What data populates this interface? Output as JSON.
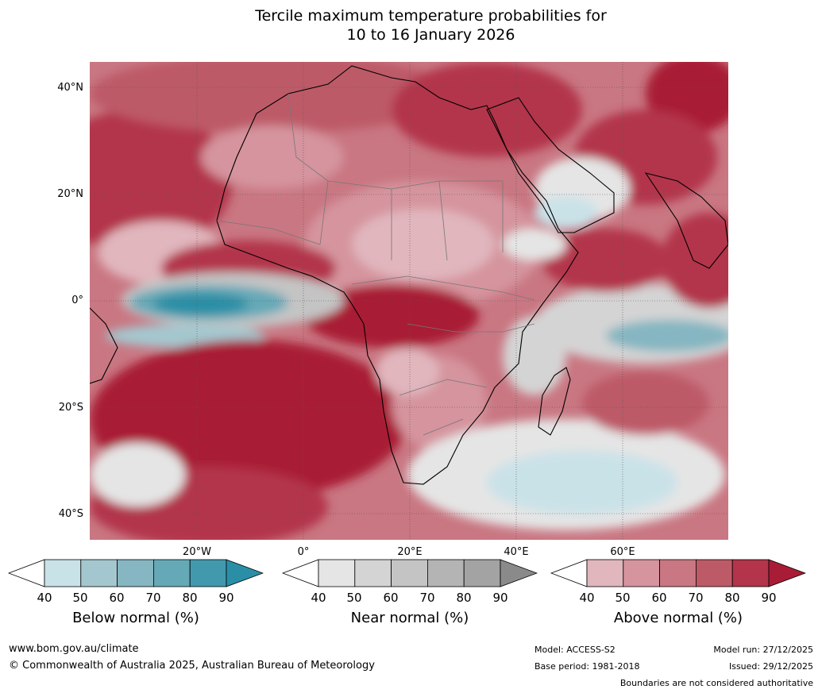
{
  "title_line1": "Tercile maximum temperature probabilities for",
  "title_line2": "10 to 16 January 2026",
  "lat_labels": [
    "40°N",
    "20°N",
    "0°",
    "20°S",
    "40°S"
  ],
  "lon_labels": [
    "20°W",
    "0°",
    "20°E",
    "40°E",
    "60°E"
  ],
  "colorbars": [
    {
      "name": "below",
      "title": "Below normal (%)",
      "ticks": [
        "40",
        "50",
        "60",
        "70",
        "80",
        "90"
      ],
      "colors": [
        "#ffffff",
        "#c9e2e8",
        "#a4c7cf",
        "#85b6c1",
        "#65a9b7",
        "#4299ae",
        "#2a8fa6"
      ]
    },
    {
      "name": "near",
      "title": "Near normal (%)",
      "ticks": [
        "40",
        "50",
        "60",
        "70",
        "80",
        "90"
      ],
      "colors": [
        "#ffffff",
        "#e5e5e5",
        "#d4d4d4",
        "#c4c4c4",
        "#b4b4b4",
        "#a3a3a3",
        "#8a8a8a"
      ]
    },
    {
      "name": "above",
      "title": "Above normal (%)",
      "ticks": [
        "40",
        "50",
        "60",
        "70",
        "80",
        "90"
      ],
      "colors": [
        "#ffffff",
        "#e1b6bd",
        "#d5949e",
        "#c97782",
        "#bd5a68",
        "#b3344b",
        "#a91c36"
      ]
    }
  ],
  "footer": {
    "website": "www.bom.gov.au/climate",
    "copyright": "© Commonwealth of Australia 2025, Australian Bureau of Meteorology",
    "model": "Model: ACCESS-S2",
    "base_period": "Base period: 1981-2018",
    "model_run": "Model run: 27/12/2025",
    "issued": "Issued: 29/12/2025",
    "disclaimer": "Boundaries are not considered authoritative"
  }
}
